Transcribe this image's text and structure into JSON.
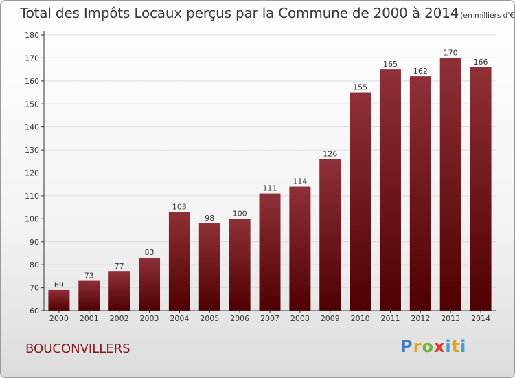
{
  "title": "Total des Impôts Locaux perçus par la Commune de 2000 à 2014",
  "subtitle": "(en milliers d'€)",
  "commune": "BOUCONVILLERS",
  "brand": {
    "letters": [
      "P",
      "r",
      "o",
      "x",
      "i",
      "t",
      "i"
    ],
    "colors": {
      "blue": "#3a7fc4",
      "orange": "#e8a21d",
      "green": "#77b23a",
      "red": "#e03a2a",
      "light_blue": "#3a9fd8"
    }
  },
  "colors": {
    "bar_top": "#8f3037",
    "bar_bottom": "#4f0000",
    "grid": "#dddddd",
    "axis": "#333333"
  },
  "chart_data": {
    "type": "bar",
    "title": "Total des Impôts Locaux perçus par la Commune de 2000 à 2014",
    "subtitle": "(en milliers d'€)",
    "xlabel": "",
    "ylabel": "",
    "categories": [
      "2000",
      "2001",
      "2002",
      "2003",
      "2004",
      "2005",
      "2006",
      "2007",
      "2008",
      "2009",
      "2010",
      "2011",
      "2012",
      "2013",
      "2014"
    ],
    "values": [
      69,
      73,
      77,
      83,
      103,
      98,
      100,
      111,
      114,
      126,
      155,
      165,
      162,
      170,
      166
    ],
    "ylim": [
      60,
      180
    ],
    "yticks": [
      60,
      70,
      80,
      90,
      100,
      110,
      120,
      130,
      140,
      150,
      160,
      170,
      180
    ],
    "grid": "horizontal",
    "data_labels": true,
    "legend": "none"
  }
}
